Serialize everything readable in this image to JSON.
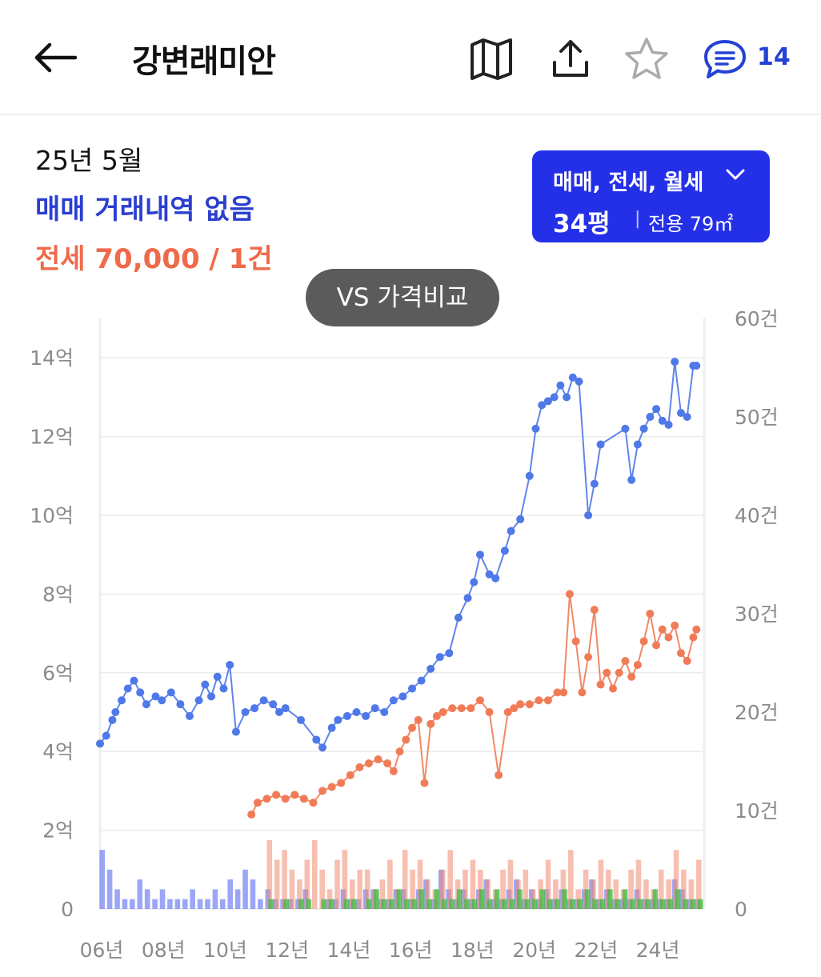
{
  "header": {
    "title": "강변래미안",
    "comment_count": "14",
    "icons": [
      "back-arrow-icon",
      "map-icon",
      "share-icon",
      "star-icon",
      "comment-icon"
    ]
  },
  "summary": {
    "date": "25년 5월",
    "sale_status": "매매 거래내역 없음",
    "jeonse_status": "전세 70,000 / 1건"
  },
  "filter": {
    "types": "매매, 전세, 월세",
    "size": "34평",
    "separator": "|",
    "area": "전용 79㎡"
  },
  "vs_button": {
    "label": "VS 가격비교"
  },
  "colors": {
    "sale": "#4f78e8",
    "jeonse": "#f07c57",
    "monthly": "#3dbb3d",
    "accent": "#2430e8"
  },
  "chart_data": {
    "type": "line",
    "left_axis": {
      "unit": "억",
      "ylim": [
        0,
        15
      ],
      "ticks": [
        "0",
        "2억",
        "4억",
        "6억",
        "8억",
        "10억",
        "12억",
        "14억"
      ]
    },
    "right_axis": {
      "unit": "건",
      "ylim": [
        0,
        60
      ],
      "ticks": [
        "0",
        "10건",
        "20건",
        "30건",
        "40건",
        "50건",
        "60건"
      ]
    },
    "x_ticks": [
      "06년",
      "08년",
      "10년",
      "12년",
      "14년",
      "16년",
      "18년",
      "20년",
      "22년",
      "24년"
    ],
    "xlim": [
      2006,
      2025.5
    ],
    "grid": true,
    "series": [
      {
        "name": "매매",
        "color": "#4f78e8",
        "x": [
          2006.0,
          2006.2,
          2006.4,
          2006.5,
          2006.7,
          2006.9,
          2007.1,
          2007.3,
          2007.5,
          2007.8,
          2008.0,
          2008.3,
          2008.6,
          2008.9,
          2009.2,
          2009.4,
          2009.6,
          2009.8,
          2010.0,
          2010.2,
          2010.4,
          2010.7,
          2011.0,
          2011.3,
          2011.6,
          2011.8,
          2012.0,
          2012.5,
          2013.0,
          2013.2,
          2013.5,
          2013.7,
          2014.0,
          2014.3,
          2014.6,
          2014.9,
          2015.2,
          2015.5,
          2015.8,
          2016.1,
          2016.4,
          2016.7,
          2017.0,
          2017.3,
          2017.6,
          2017.9,
          2018.1,
          2018.3,
          2018.6,
          2018.8,
          2019.1,
          2019.3,
          2019.6,
          2019.9,
          2020.1,
          2020.3,
          2020.5,
          2020.7,
          2020.9,
          2021.1,
          2021.3,
          2021.5,
          2021.8,
          2022.0,
          2022.2,
          2023.0,
          2023.2,
          2023.4,
          2023.6,
          2023.8,
          2024.0,
          2024.2,
          2024.4,
          2024.6,
          2024.8,
          2025.0,
          2025.2,
          2025.3
        ],
        "values": [
          4.2,
          4.4,
          4.8,
          5.0,
          5.3,
          5.6,
          5.8,
          5.5,
          5.2,
          5.4,
          5.3,
          5.5,
          5.2,
          4.9,
          5.3,
          5.7,
          5.4,
          5.9,
          5.6,
          6.2,
          4.5,
          5.0,
          5.1,
          5.3,
          5.2,
          5.0,
          5.1,
          4.8,
          4.3,
          4.1,
          4.6,
          4.8,
          4.9,
          5.0,
          4.9,
          5.1,
          5.0,
          5.3,
          5.4,
          5.6,
          5.8,
          6.1,
          6.4,
          6.5,
          7.4,
          7.9,
          8.3,
          9.0,
          8.5,
          8.4,
          9.1,
          9.6,
          9.9,
          11.0,
          12.2,
          12.8,
          12.9,
          13.0,
          13.3,
          13.0,
          13.5,
          13.4,
          10.0,
          10.8,
          11.8,
          12.2,
          10.9,
          11.8,
          12.2,
          12.5,
          12.7,
          12.4,
          12.3,
          13.9,
          12.6,
          12.5,
          13.8,
          13.8
        ],
        "ylim": [
          0,
          15
        ]
      },
      {
        "name": "전세",
        "color": "#f07c57",
        "x": [
          2010.9,
          2011.1,
          2011.4,
          2011.7,
          2012.0,
          2012.3,
          2012.6,
          2012.9,
          2013.2,
          2013.5,
          2013.8,
          2014.1,
          2014.4,
          2014.7,
          2015.0,
          2015.3,
          2015.5,
          2015.7,
          2015.9,
          2016.1,
          2016.3,
          2016.5,
          2016.7,
          2016.9,
          2017.1,
          2017.4,
          2017.7,
          2018.0,
          2018.3,
          2018.6,
          2018.9,
          2019.2,
          2019.4,
          2019.6,
          2019.9,
          2020.2,
          2020.5,
          2020.8,
          2021.0,
          2021.2,
          2021.4,
          2021.6,
          2021.8,
          2022.0,
          2022.2,
          2022.4,
          2022.6,
          2022.8,
          2023.0,
          2023.2,
          2023.4,
          2023.6,
          2023.8,
          2024.0,
          2024.2,
          2024.4,
          2024.6,
          2024.8,
          2025.0,
          2025.2,
          2025.3
        ],
        "values": [
          2.4,
          2.7,
          2.8,
          2.9,
          2.8,
          2.9,
          2.8,
          2.7,
          3.0,
          3.1,
          3.2,
          3.4,
          3.6,
          3.7,
          3.8,
          3.7,
          3.5,
          4.0,
          4.3,
          4.6,
          4.8,
          3.2,
          4.7,
          4.9,
          5.0,
          5.1,
          5.1,
          5.1,
          5.3,
          5.0,
          3.4,
          5.0,
          5.1,
          5.2,
          5.2,
          5.3,
          5.3,
          5.5,
          5.5,
          8.0,
          6.8,
          5.5,
          6.4,
          7.6,
          5.7,
          6.0,
          5.6,
          6.0,
          6.3,
          5.9,
          6.2,
          6.8,
          7.5,
          6.7,
          7.1,
          6.9,
          7.2,
          6.5,
          6.3,
          6.9,
          7.1
        ],
        "ylim": [
          0,
          15
        ]
      }
    ],
    "volume_series": [
      {
        "name": "매매 거래량",
        "color": "#4a5cf0",
        "values": [
          6,
          4,
          2,
          1,
          1,
          3,
          2,
          1,
          2,
          1,
          1,
          1,
          2,
          1,
          1,
          2,
          1,
          3,
          2,
          4,
          3,
          1,
          2,
          1,
          1,
          1,
          1,
          2,
          0,
          0,
          1,
          1,
          2,
          1,
          1,
          2,
          2,
          1,
          1,
          2,
          2,
          1,
          2,
          3,
          1,
          4,
          2,
          1,
          2,
          1,
          2,
          3,
          1,
          1,
          2,
          3,
          1,
          2,
          1,
          2,
          1,
          2,
          1,
          1,
          2,
          3,
          1,
          2,
          1,
          1,
          1,
          2,
          1,
          1,
          1,
          1,
          3,
          2,
          1,
          1
        ]
      },
      {
        "name": "전세 거래량",
        "color": "#f08a70",
        "values": [
          0,
          0,
          0,
          0,
          0,
          0,
          0,
          0,
          0,
          0,
          0,
          0,
          0,
          0,
          0,
          0,
          0,
          0,
          0,
          0,
          0,
          0,
          7,
          5,
          6,
          4,
          3,
          5,
          7,
          4,
          2,
          5,
          6,
          3,
          4,
          4,
          2,
          3,
          5,
          2,
          6,
          4,
          5,
          3,
          2,
          4,
          6,
          3,
          4,
          5,
          4,
          3,
          2,
          4,
          5,
          3,
          4,
          2,
          3,
          5,
          3,
          4,
          6,
          2,
          4,
          3,
          5,
          4,
          3,
          2,
          4,
          5,
          3,
          2,
          4,
          3,
          6,
          4,
          3,
          5
        ]
      },
      {
        "name": "월세 거래량",
        "color": "#3dbb3d",
        "values": [
          0,
          0,
          0,
          0,
          0,
          0,
          0,
          0,
          0,
          0,
          0,
          0,
          0,
          0,
          0,
          0,
          0,
          0,
          0,
          0,
          0,
          0,
          1,
          0,
          1,
          0,
          1,
          1,
          0,
          1,
          1,
          0,
          1,
          1,
          0,
          1,
          2,
          1,
          1,
          2,
          1,
          1,
          2,
          1,
          2,
          1,
          1,
          2,
          1,
          1,
          2,
          1,
          2,
          1,
          1,
          2,
          1,
          1,
          2,
          1,
          1,
          2,
          1,
          1,
          2,
          1,
          1,
          2,
          1,
          2,
          1,
          1,
          1,
          2,
          1,
          1,
          2,
          1,
          1,
          1
        ]
      }
    ]
  }
}
